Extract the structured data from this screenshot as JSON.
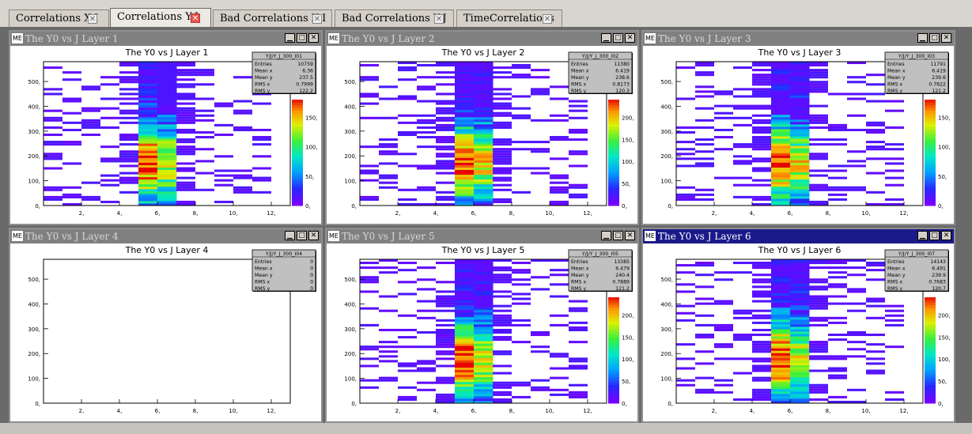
{
  "tabs": [
    {
      "label": "Correlations X-I",
      "active": false
    },
    {
      "label": "Correlations Y-J",
      "active": true
    },
    {
      "label": "Bad Correlations X-I",
      "active": false
    },
    {
      "label": "Bad Correlations Y-J",
      "active": false
    },
    {
      "label": "TimeCorrelations",
      "active": false
    }
  ],
  "windows": [
    {
      "window_title": "The Y0 vs J Layer 1",
      "me_label": "ME",
      "active": false
    },
    {
      "window_title": "The Y0 vs J Layer 2",
      "me_label": "ME",
      "active": false
    },
    {
      "window_title": "The Y0 vs J Layer 3",
      "me_label": "ME",
      "active": false
    },
    {
      "window_title": "The Y0 vs J Layer 4",
      "me_label": "ME",
      "active": false
    },
    {
      "window_title": "The Y0 vs J Layer 5",
      "me_label": "ME",
      "active": false
    },
    {
      "window_title": "The Y0 vs J Layer 6",
      "me_label": "ME",
      "active": true
    }
  ],
  "chart_data": [
    {
      "type": "heatmap",
      "title": "The Y0 vs J Layer 1",
      "stats_name": "Y/J/Y_J_300_I01",
      "stats": [
        [
          "Entries",
          "10759"
        ],
        [
          "Mean x",
          "6.36"
        ],
        [
          "Mean y",
          "237.5"
        ],
        [
          "RMS x",
          "0.7999"
        ],
        [
          "RMS y",
          "122.2"
        ]
      ],
      "xlim": [
        0,
        13
      ],
      "ylim": [
        0,
        580
      ],
      "x_ticks": [
        "2,",
        "4,",
        "6,",
        "8,",
        "10,",
        "12,"
      ],
      "y_ticks": [
        "0,",
        "100,",
        "200,",
        "300,",
        "400,",
        "500,"
      ],
      "z_ticks": [
        "0,",
        "50,",
        "100,",
        "150,"
      ],
      "zmax": 180,
      "empty": false
    },
    {
      "type": "heatmap",
      "title": "The Y0 vs J Layer 2",
      "stats_name": "Y/J/Y_J_300_I02",
      "stats": [
        [
          "Entries",
          "11380"
        ],
        [
          "Mean x",
          "6.419"
        ],
        [
          "Mean y",
          "238.6"
        ],
        [
          "RMS x",
          "0.8173"
        ],
        [
          "RMS y",
          "120.3"
        ]
      ],
      "xlim": [
        0,
        13
      ],
      "ylim": [
        0,
        580
      ],
      "x_ticks": [
        "2,",
        "4,",
        "6,",
        "8,",
        "10,",
        "12,"
      ],
      "y_ticks": [
        "0,",
        "100,",
        "200,",
        "300,",
        "400,",
        "500,"
      ],
      "z_ticks": [
        "0,",
        "50,",
        "100,",
        "150,",
        "200,"
      ],
      "zmax": 240,
      "empty": false
    },
    {
      "type": "heatmap",
      "title": "The Y0 vs J Layer 3",
      "stats_name": "Y/J/Y_J_300_I03",
      "stats": [
        [
          "Entries",
          "11791"
        ],
        [
          "Mean x",
          "6.419"
        ],
        [
          "Mean y",
          "239.6"
        ],
        [
          "RMS x",
          "0.7822"
        ],
        [
          "RMS y",
          "121.2"
        ]
      ],
      "xlim": [
        0,
        13
      ],
      "ylim": [
        0,
        580
      ],
      "x_ticks": [
        "2,",
        "4,",
        "6,",
        "8,",
        "10,",
        "12,"
      ],
      "y_ticks": [
        "0,",
        "100,",
        "200,",
        "300,",
        "400,",
        "500,"
      ],
      "z_ticks": [
        "0,",
        "50,",
        "100,",
        "150,"
      ],
      "zmax": 180,
      "empty": false
    },
    {
      "type": "heatmap",
      "title": "The Y0 vs J Layer 4",
      "stats_name": "Y/J/Y_J_300_I04",
      "stats": [
        [
          "Entries",
          "0"
        ],
        [
          "Mean x",
          "0"
        ],
        [
          "Mean y",
          "0"
        ],
        [
          "RMS x",
          "0"
        ],
        [
          "RMS y",
          "0"
        ]
      ],
      "xlim": [
        0,
        13
      ],
      "ylim": [
        0,
        580
      ],
      "x_ticks": [
        "2,",
        "4,",
        "6,",
        "8,",
        "10,",
        "12,"
      ],
      "y_ticks": [
        "0,",
        "100,",
        "200,",
        "300,",
        "400,",
        "500,"
      ],
      "z_ticks": [],
      "zmax": 1,
      "empty": true
    },
    {
      "type": "heatmap",
      "title": "The Y0 vs J Layer 5",
      "stats_name": "Y/J/Y_J_300_I05",
      "stats": [
        [
          "Entries",
          "13385"
        ],
        [
          "Mean x",
          "6.479"
        ],
        [
          "Mean y",
          "240.4"
        ],
        [
          "RMS x",
          "0.7889"
        ],
        [
          "RMS y",
          "121.2"
        ]
      ],
      "xlim": [
        0,
        13
      ],
      "ylim": [
        0,
        580
      ],
      "x_ticks": [
        "2,",
        "4,",
        "6,",
        "8,",
        "10,",
        "12,"
      ],
      "y_ticks": [
        "0,",
        "100,",
        "200,",
        "300,",
        "400,",
        "500,"
      ],
      "z_ticks": [
        "0,",
        "50,",
        "100,",
        "150,",
        "200,"
      ],
      "zmax": 240,
      "empty": false
    },
    {
      "type": "heatmap",
      "title": "The Y0 vs J Layer 6",
      "stats_name": "Y/J/Y_J_300_I07",
      "stats": [
        [
          "Entries",
          "14143"
        ],
        [
          "Mean x",
          "6.491"
        ],
        [
          "Mean y",
          "239.9"
        ],
        [
          "RMS x",
          "0.7683"
        ],
        [
          "RMS y",
          "120.7"
        ]
      ],
      "xlim": [
        0,
        13
      ],
      "ylim": [
        0,
        580
      ],
      "x_ticks": [
        "2,",
        "4,",
        "6,",
        "8,",
        "10,",
        "12,"
      ],
      "y_ticks": [
        "0,",
        "100,",
        "200,",
        "300,",
        "400,",
        "500,"
      ],
      "z_ticks": [
        "0,",
        "50,",
        "100,",
        "150,",
        "200,"
      ],
      "zmax": 240,
      "empty": false
    }
  ]
}
